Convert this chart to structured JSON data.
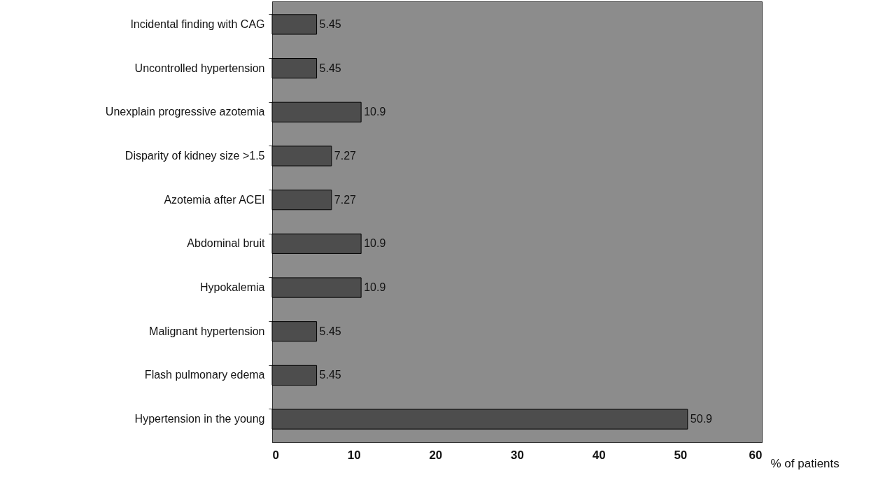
{
  "chart_data": {
    "type": "bar",
    "orientation": "horizontal",
    "xlabel": "% of patients",
    "categories": [
      "Incidental finding with CAG",
      "Uncontrolled hypertension",
      "Unexplain progressive azotemia",
      "Disparity of kidney size >1.5",
      "Azotemia after ACEI",
      "Abdominal bruit",
      "Hypokalemia",
      "Malignant hypertension",
      "Flash  pulmonary edema",
      "Hypertension in the young"
    ],
    "values": [
      5.45,
      5.45,
      10.9,
      7.27,
      7.27,
      10.9,
      10.9,
      5.45,
      5.45,
      50.9
    ],
    "color": "#4d4d4d",
    "data_labels": true,
    "xlim": [
      0,
      60
    ],
    "xticks": [
      0,
      10,
      20,
      30,
      40,
      50,
      60
    ],
    "grid": false
  }
}
